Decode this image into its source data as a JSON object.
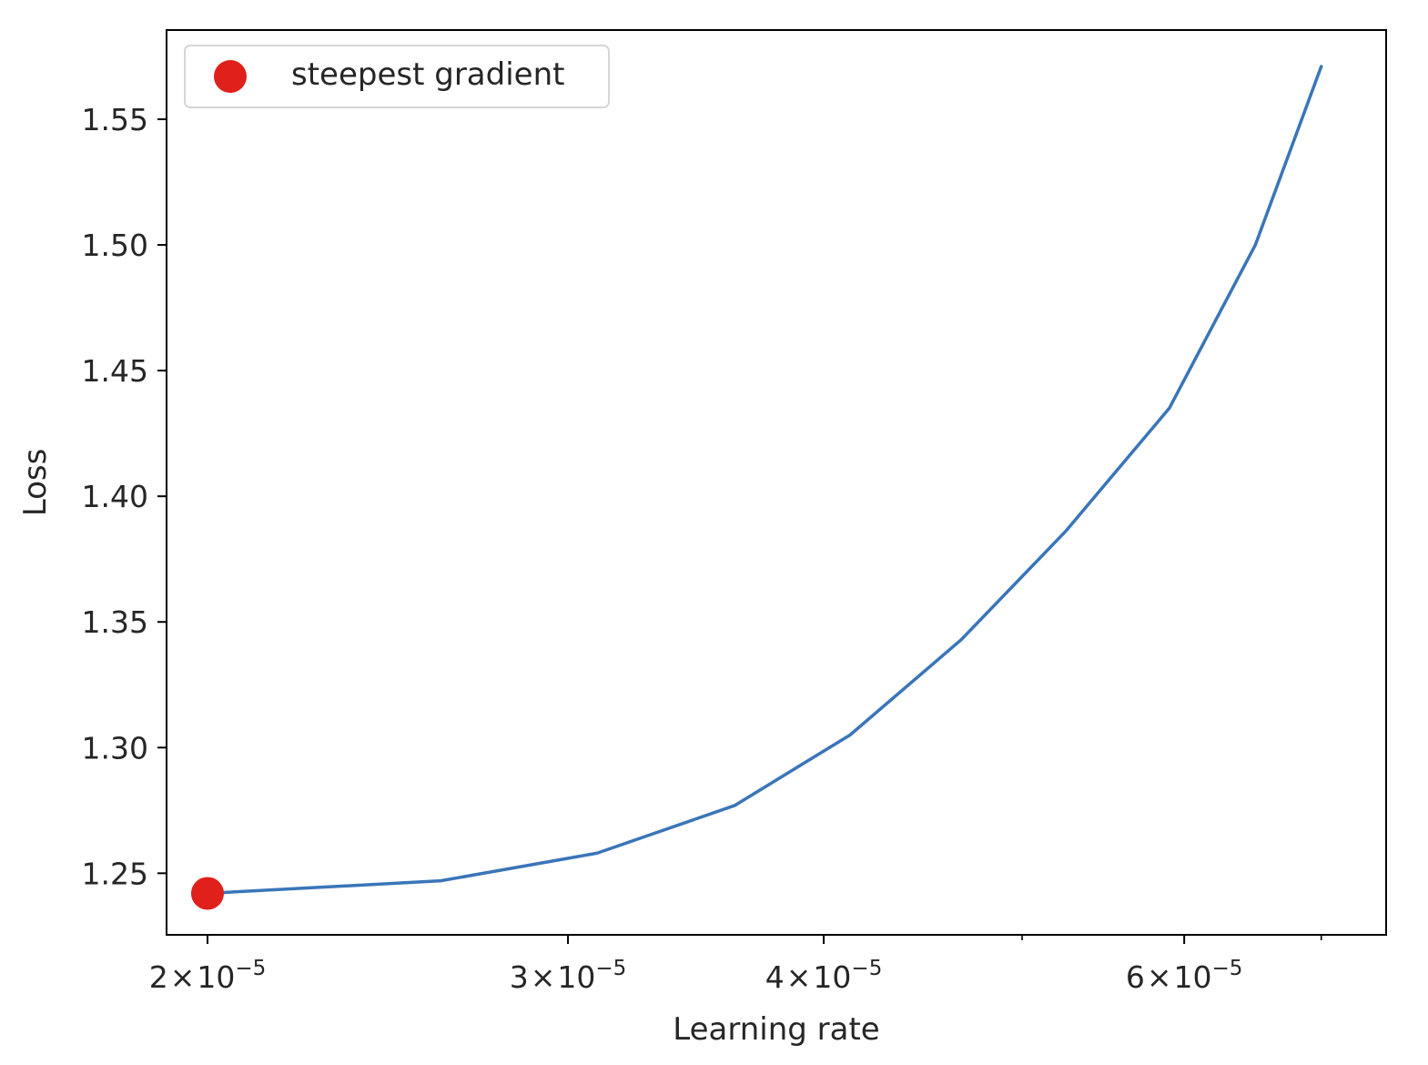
{
  "chart_data": {
    "type": "line",
    "title": "",
    "xlabel": "Learning rate",
    "ylabel": "Loss",
    "x_scale": "log",
    "xlim": [
      1.91e-05,
      7.53e-05
    ],
    "ylim": [
      1.2255,
      1.5855
    ],
    "grid": false,
    "legend": {
      "placement": "top-left",
      "entries": [
        "steepest gradient"
      ]
    },
    "colors": {
      "line": "#3a75b8",
      "marker": "#e0201b"
    },
    "x_ticks": [
      {
        "value": 2e-05,
        "mantissa": "2",
        "times": "×",
        "base": "10",
        "exp": "−5"
      },
      {
        "value": 3e-05,
        "mantissa": "3",
        "times": "×",
        "base": "10",
        "exp": "−5"
      },
      {
        "value": 4e-05,
        "mantissa": "4",
        "times": "×",
        "base": "10",
        "exp": "−5"
      },
      {
        "value": 6e-05,
        "mantissa": "6",
        "times": "×",
        "base": "10",
        "exp": "−5"
      }
    ],
    "x_minor_ticks": [
      5e-05,
      7e-05
    ],
    "y_ticks": [
      {
        "value": 1.25,
        "label": "1.25"
      },
      {
        "value": 1.3,
        "label": "1.30"
      },
      {
        "value": 1.35,
        "label": "1.35"
      },
      {
        "value": 1.4,
        "label": "1.40"
      },
      {
        "value": 1.45,
        "label": "1.45"
      },
      {
        "value": 1.5,
        "label": "1.50"
      },
      {
        "value": 1.55,
        "label": "1.55"
      }
    ],
    "series": [
      {
        "x": [
          2e-05,
          2.6e-05,
          3.1e-05,
          3.62e-05,
          4.12e-05,
          4.67e-05,
          5.25e-05,
          5.9e-05,
          6.5e-05,
          7e-05
        ],
        "y": [
          1.242,
          1.247,
          1.258,
          1.277,
          1.305,
          1.343,
          1.386,
          1.435,
          1.5,
          1.571
        ]
      }
    ],
    "marker_point": {
      "x": 2e-05,
      "y": 1.242
    }
  }
}
